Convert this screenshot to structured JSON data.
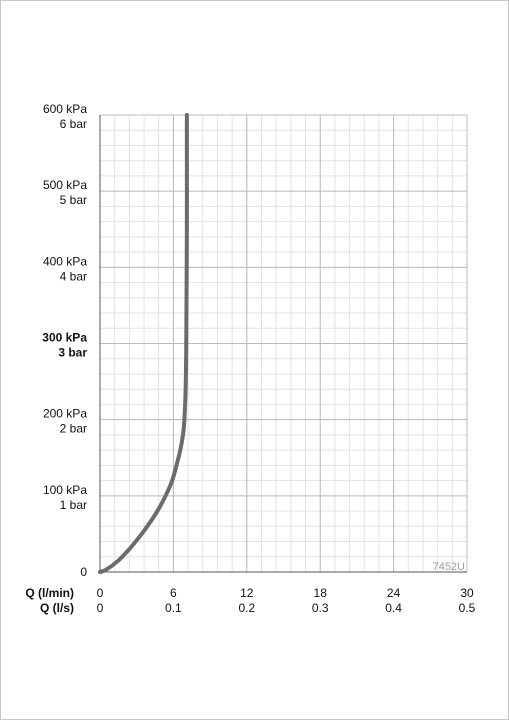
{
  "chart_data": {
    "type": "line",
    "code_label": "7452U",
    "y_ticks": [
      {
        "value": 0,
        "lines": [
          "0"
        ],
        "bold": false
      },
      {
        "value": 100,
        "lines": [
          "100 kPa",
          "1 bar"
        ],
        "bold": false
      },
      {
        "value": 200,
        "lines": [
          "200 kPa",
          "2 bar"
        ],
        "bold": false
      },
      {
        "value": 300,
        "lines": [
          "300 kPa",
          "3 bar"
        ],
        "bold": true
      },
      {
        "value": 400,
        "lines": [
          "400 kPa",
          "4 bar"
        ],
        "bold": false
      },
      {
        "value": 500,
        "lines": [
          "500 kPa",
          "5 bar"
        ],
        "bold": false
      },
      {
        "value": 600,
        "lines": [
          "600 kPa",
          "6 bar"
        ],
        "bold": false
      }
    ],
    "x_axes": [
      {
        "label": "Q (l/min)",
        "ticks": [
          "0",
          "6",
          "12",
          "18",
          "24",
          "30"
        ],
        "ticks_value": [
          0,
          6,
          12,
          18,
          24,
          30
        ]
      },
      {
        "label": "Q (l/s)",
        "ticks": [
          "0",
          "0.1",
          "0.2",
          "0.3",
          "0.4",
          "0.5"
        ]
      }
    ],
    "xlim": [
      0,
      30
    ],
    "ylim": [
      0,
      600
    ],
    "grid": true,
    "series": [
      {
        "color": "#6b6b6b",
        "x": [
          0,
          0.5,
          1.5,
          2.5,
          3.5,
          4.5,
          5.3,
          5.9,
          6.3,
          6.6,
          6.8,
          6.9,
          7.0,
          7.05,
          7.1,
          7.1
        ],
        "y": [
          0,
          3,
          15,
          32,
          52,
          75,
          98,
          120,
          143,
          163,
          182,
          200,
          240,
          300,
          450,
          600
        ]
      }
    ]
  }
}
